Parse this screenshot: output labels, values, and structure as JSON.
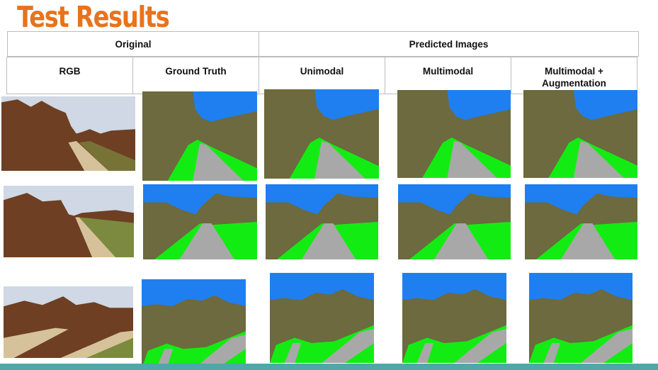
{
  "slide": {
    "title": "Test Results"
  },
  "table": {
    "group_headers": {
      "original": "Original",
      "predicted": "Predicted  Images"
    },
    "columns": {
      "rgb": "RGB",
      "ground_truth": "Ground Truth",
      "unimodal": "Unimodal",
      "multimodal": "Multimodal",
      "multimodal_aug_line1": "Multimodal +",
      "multimodal_aug_line2": "Augmentation"
    }
  },
  "segmentation_colors": {
    "sky": "#1f7ff0",
    "trees": "#6c6a3e",
    "grass": "#13ec13",
    "road": "#a8a8a8"
  },
  "photo_colors": {
    "sky": "#cfd8e4",
    "trees": "#6e3f22",
    "field": "#7b8a3e",
    "path": "#d6c29a"
  },
  "accent_bar_color": "#4fa8a8"
}
